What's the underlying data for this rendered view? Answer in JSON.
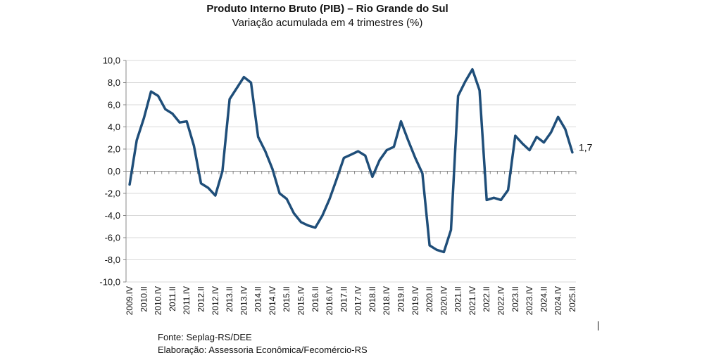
{
  "chart_data": {
    "type": "line",
    "title": "Produto Interno Bruto (PIB) – Rio Grande do Sul",
    "subtitle": "Variação acumulada em 4 trimestres (%)",
    "xlabel": "",
    "ylabel": "",
    "ylim": [
      -10,
      10
    ],
    "y_ticks": [
      "10,0",
      "8,0",
      "6,0",
      "4,0",
      "2,0",
      "0,0",
      "-2,0",
      "-4,0",
      "-6,0",
      "-8,0",
      "-10,0"
    ],
    "x_tick_labels": [
      "2009.IV",
      "2010.II",
      "2010.IV",
      "2011.II",
      "2011.IV",
      "2012.II",
      "2012.IV",
      "2013.II",
      "2013.IV",
      "2014.II",
      "2014.IV",
      "2015.II",
      "2015.IV",
      "2016.II",
      "2016.IV",
      "2017.II",
      "2017.IV",
      "2018.II",
      "2018.IV",
      "2019.II",
      "2019.IV",
      "2020.II",
      "2020.IV",
      "2021.II",
      "2021.IV",
      "2022.II",
      "2022.IV",
      "2023.II",
      "2023.IV",
      "2024.II",
      "2024.IV",
      "2025.II"
    ],
    "x": [
      "2009.IV",
      "2010.I",
      "2010.II",
      "2010.III",
      "2010.IV",
      "2011.I",
      "2011.II",
      "2011.III",
      "2011.IV",
      "2012.I",
      "2012.II",
      "2012.III",
      "2012.IV",
      "2013.I",
      "2013.II",
      "2013.III",
      "2013.IV",
      "2014.I",
      "2014.II",
      "2014.III",
      "2014.IV",
      "2015.I",
      "2015.II",
      "2015.III",
      "2015.IV",
      "2016.I",
      "2016.II",
      "2016.III",
      "2016.IV",
      "2017.I",
      "2017.II",
      "2017.III",
      "2017.IV",
      "2018.I",
      "2018.II",
      "2018.III",
      "2018.IV",
      "2019.I",
      "2019.II",
      "2019.III",
      "2019.IV",
      "2020.I",
      "2020.II",
      "2020.III",
      "2020.IV",
      "2021.I",
      "2021.II",
      "2021.III",
      "2021.IV",
      "2022.I",
      "2022.II",
      "2022.III",
      "2022.IV",
      "2023.I",
      "2023.II",
      "2023.III",
      "2023.IV",
      "2024.I",
      "2024.II",
      "2024.III",
      "2024.IV",
      "2025.I",
      "2025.II"
    ],
    "series": [
      {
        "values": [
          -1.2,
          2.8,
          4.8,
          7.2,
          6.8,
          5.6,
          5.2,
          4.4,
          4.5,
          2.3,
          -1.1,
          -1.5,
          -2.2,
          0.0,
          6.5,
          7.5,
          8.5,
          8.0,
          3.1,
          1.8,
          0.2,
          -2.0,
          -2.5,
          -3.8,
          -4.6,
          -4.9,
          -5.1,
          -4.0,
          -2.5,
          -0.7,
          1.2,
          1.5,
          1.8,
          1.4,
          -0.5,
          1.0,
          1.9,
          2.2,
          4.5,
          2.8,
          1.2,
          -0.2,
          -6.7,
          -7.1,
          -7.3,
          -5.3,
          6.8,
          8.1,
          9.2,
          7.3,
          -2.6,
          -2.4,
          -2.6,
          -1.7,
          3.2,
          2.5,
          1.9,
          3.1,
          2.6,
          3.5,
          4.9,
          3.8,
          1.7
        ]
      }
    ],
    "data_labels": [
      {
        "index": 62,
        "text": "1,7"
      }
    ],
    "grid": "horizontal",
    "legend": "none",
    "line_color": "#1f4e79",
    "grid_color": "#d9d9d9"
  },
  "notes": {
    "source": "Fonte: Seplag-RS/DEE",
    "credit": "Elaboração: Assessoria Econômica/Fecomércio-RS"
  }
}
